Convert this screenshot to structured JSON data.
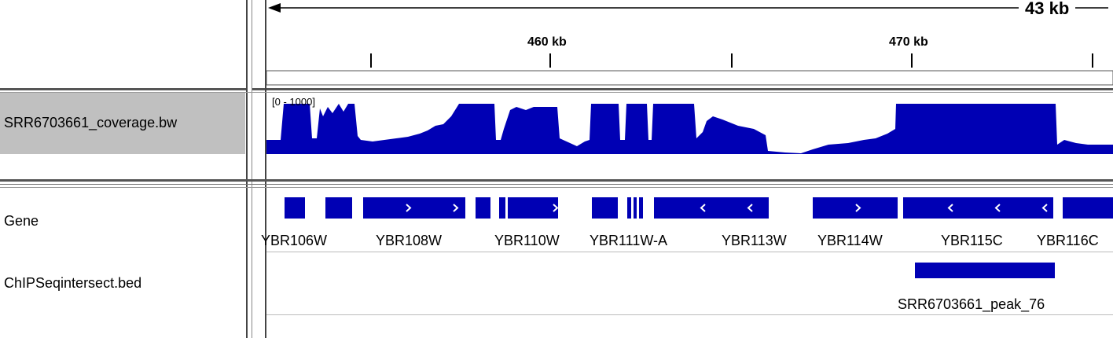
{
  "ruler": {
    "span_label": "43 kb",
    "ticks": [
      "460 kb",
      "470 kb"
    ]
  },
  "tracks": {
    "coverage": {
      "name": "SRR6703661_coverage.bw",
      "range": "[0 - 1000]",
      "color": "#0000b4"
    },
    "gene": {
      "name": "Gene",
      "color": "#0000b4",
      "labels": [
        "YBR106W",
        "YBR108W",
        "YBR110W",
        "YBR111W-A",
        "YBR113W",
        "YBR114W",
        "YBR115C",
        "YBR116C"
      ]
    },
    "bed": {
      "name": "ChIPSeqintersect.bed",
      "feature": "SRR6703661_peak_76",
      "color": "#0000b4"
    }
  },
  "colors": {
    "selected_track_bg": "#c0c0c0",
    "feature": "#0000b4"
  }
}
